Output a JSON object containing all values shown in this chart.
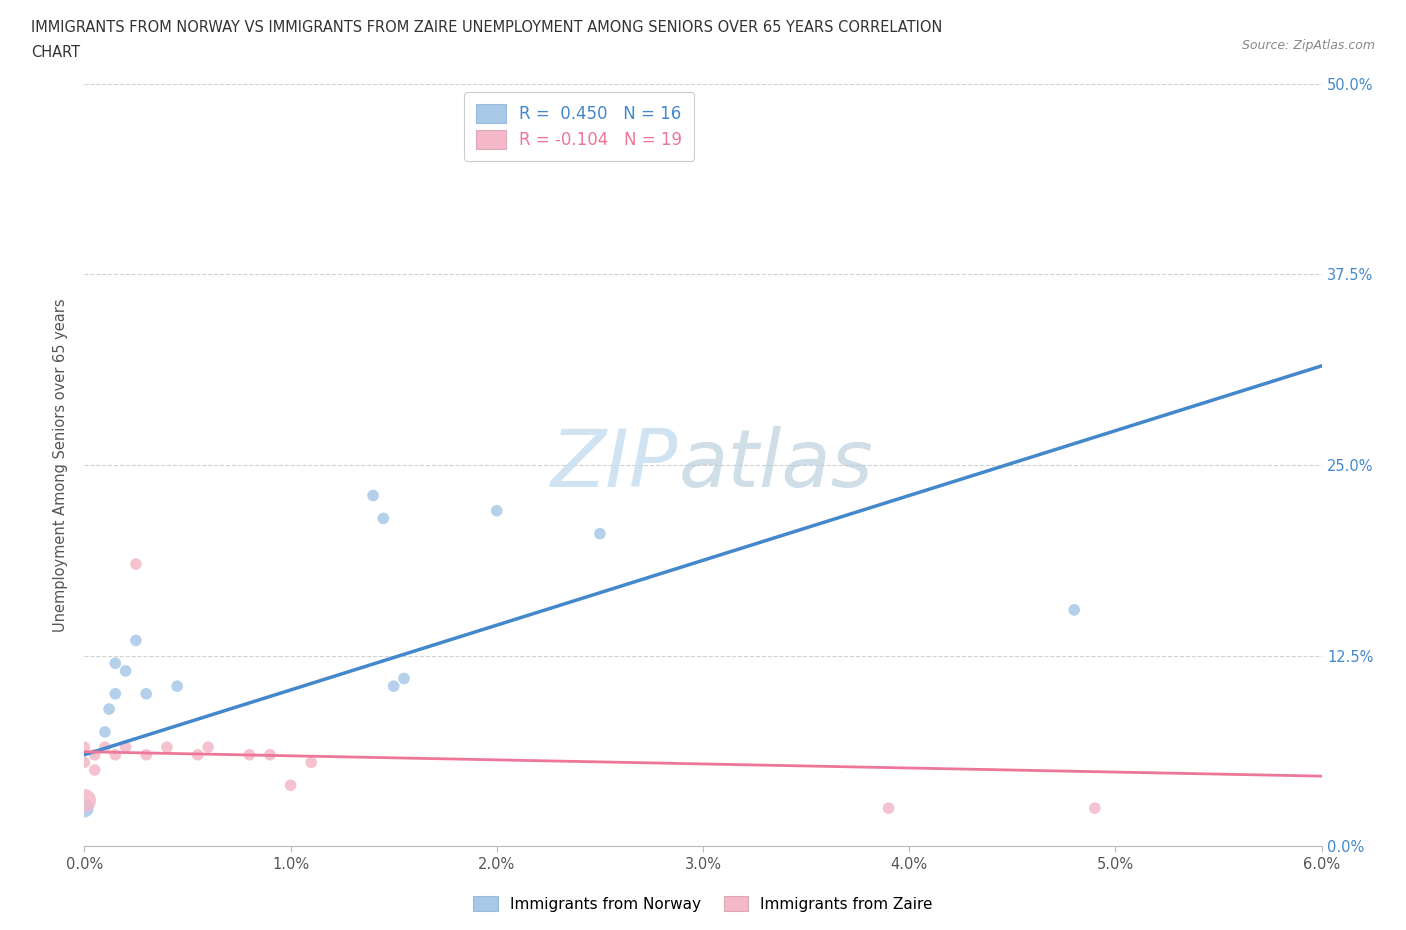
{
  "title_line1": "IMMIGRANTS FROM NORWAY VS IMMIGRANTS FROM ZAIRE UNEMPLOYMENT AMONG SENIORS OVER 65 YEARS CORRELATION",
  "title_line2": "CHART",
  "source": "Source: ZipAtlas.com",
  "ylabel_left": "Unemployment Among Seniors over 65 years",
  "xlim": [
    0.0,
    0.06
  ],
  "ylim": [
    0.0,
    0.5
  ],
  "watermark_zip": "ZIP",
  "watermark_atlas": "atlas",
  "norway_color": "#a8c8e8",
  "zaire_color": "#f4b8c8",
  "norway_line_color": "#4488cc",
  "zaire_line_color": "#ee7799",
  "grid_color": "#cccccc",
  "norway_x": [
    0.0,
    0.001,
    0.0012,
    0.0015,
    0.0015,
    0.002,
    0.0025,
    0.003,
    0.0045,
    0.014,
    0.0145,
    0.015,
    0.0155,
    0.02,
    0.048,
    0.025
  ],
  "norway_y": [
    0.025,
    0.075,
    0.09,
    0.12,
    0.1,
    0.115,
    0.135,
    0.1,
    0.105,
    0.23,
    0.215,
    0.105,
    0.11,
    0.22,
    0.155,
    0.205
  ],
  "norway_size": [
    180,
    70,
    70,
    70,
    70,
    70,
    70,
    70,
    70,
    70,
    70,
    70,
    70,
    70,
    70,
    70
  ],
  "zaire_x": [
    0.0,
    0.0,
    0.0,
    0.0005,
    0.0005,
    0.001,
    0.0015,
    0.002,
    0.0025,
    0.003,
    0.004,
    0.0055,
    0.006,
    0.008,
    0.009,
    0.01,
    0.011,
    0.039,
    0.049
  ],
  "zaire_y": [
    0.03,
    0.055,
    0.065,
    0.05,
    0.06,
    0.065,
    0.06,
    0.065,
    0.185,
    0.06,
    0.065,
    0.06,
    0.065,
    0.06,
    0.06,
    0.04,
    0.055,
    0.025,
    0.025
  ],
  "zaire_size": [
    280,
    70,
    70,
    70,
    70,
    70,
    70,
    70,
    70,
    70,
    70,
    70,
    70,
    70,
    70,
    70,
    70,
    70,
    70
  ],
  "norway_line_x": [
    0.0,
    0.06
  ],
  "norway_line_y": [
    0.06,
    0.315
  ],
  "zaire_line_x": [
    0.0,
    0.06
  ],
  "zaire_line_y": [
    0.062,
    0.046
  ],
  "background_color": "#ffffff",
  "plot_bg_color": "#ffffff",
  "ytick_vals": [
    0.0,
    0.125,
    0.25,
    0.375,
    0.5
  ],
  "ytick_labels": [
    "0.0%",
    "12.5%",
    "25.0%",
    "37.5%",
    "50.0%"
  ],
  "xtick_vals": [
    0.0,
    0.01,
    0.02,
    0.03,
    0.04,
    0.05,
    0.06
  ],
  "xtick_labels": [
    "0.0%",
    "1.0%",
    "2.0%",
    "3.0%",
    "4.0%",
    "5.0%",
    "6.0%"
  ]
}
